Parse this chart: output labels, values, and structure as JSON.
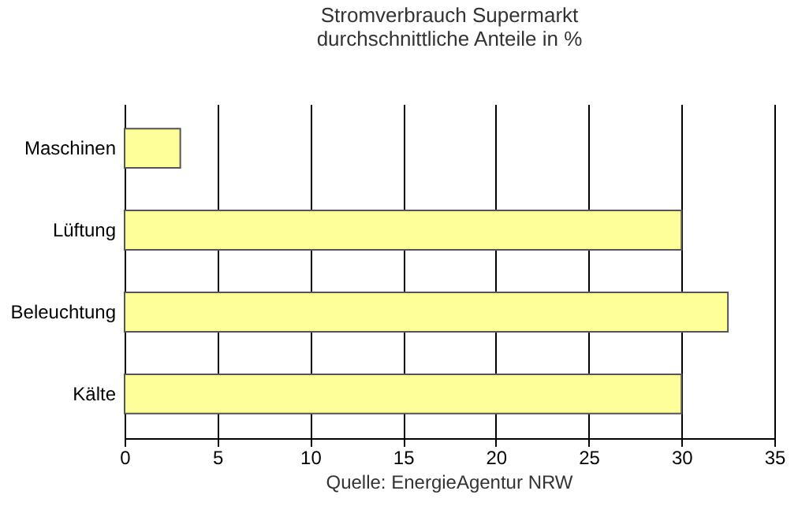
{
  "chart_data": {
    "type": "bar",
    "orientation": "horizontal",
    "title": "Stromverbrauch Supermarkt",
    "subtitle": "durchschnittliche Anteile in %",
    "categories": [
      "Maschinen",
      "Lüftung",
      "Beleuchtung",
      "Kälte"
    ],
    "values": [
      3,
      30,
      32.5,
      30
    ],
    "color": "#ffff99",
    "xlim": [
      0,
      35
    ],
    "xticks": [
      0,
      5,
      10,
      15,
      20,
      25,
      30,
      35
    ],
    "grid": "x",
    "annotations": [
      "Quelle: EnergieAgentur NRW"
    ]
  }
}
